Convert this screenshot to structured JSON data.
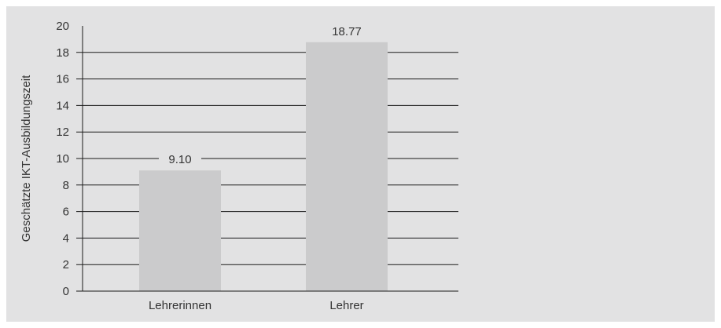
{
  "chart_data": {
    "type": "bar",
    "categories": [
      "Lehrerinnen",
      "Lehrer"
    ],
    "values": [
      9.1,
      18.77
    ],
    "value_labels": [
      "9.10",
      "18.77"
    ],
    "title": "",
    "xlabel": "",
    "ylabel": "Geschätzte IKT-Ausbildungszeit",
    "ylim": [
      0,
      20
    ],
    "yticks": [
      0,
      2,
      4,
      6,
      8,
      10,
      12,
      14,
      16,
      18,
      20
    ],
    "grid": true,
    "legend": "none",
    "colors": {
      "background": "#e2e2e3",
      "bar": "#cbcbcc",
      "grid": "#1a1a1a",
      "text": "#333333"
    }
  }
}
